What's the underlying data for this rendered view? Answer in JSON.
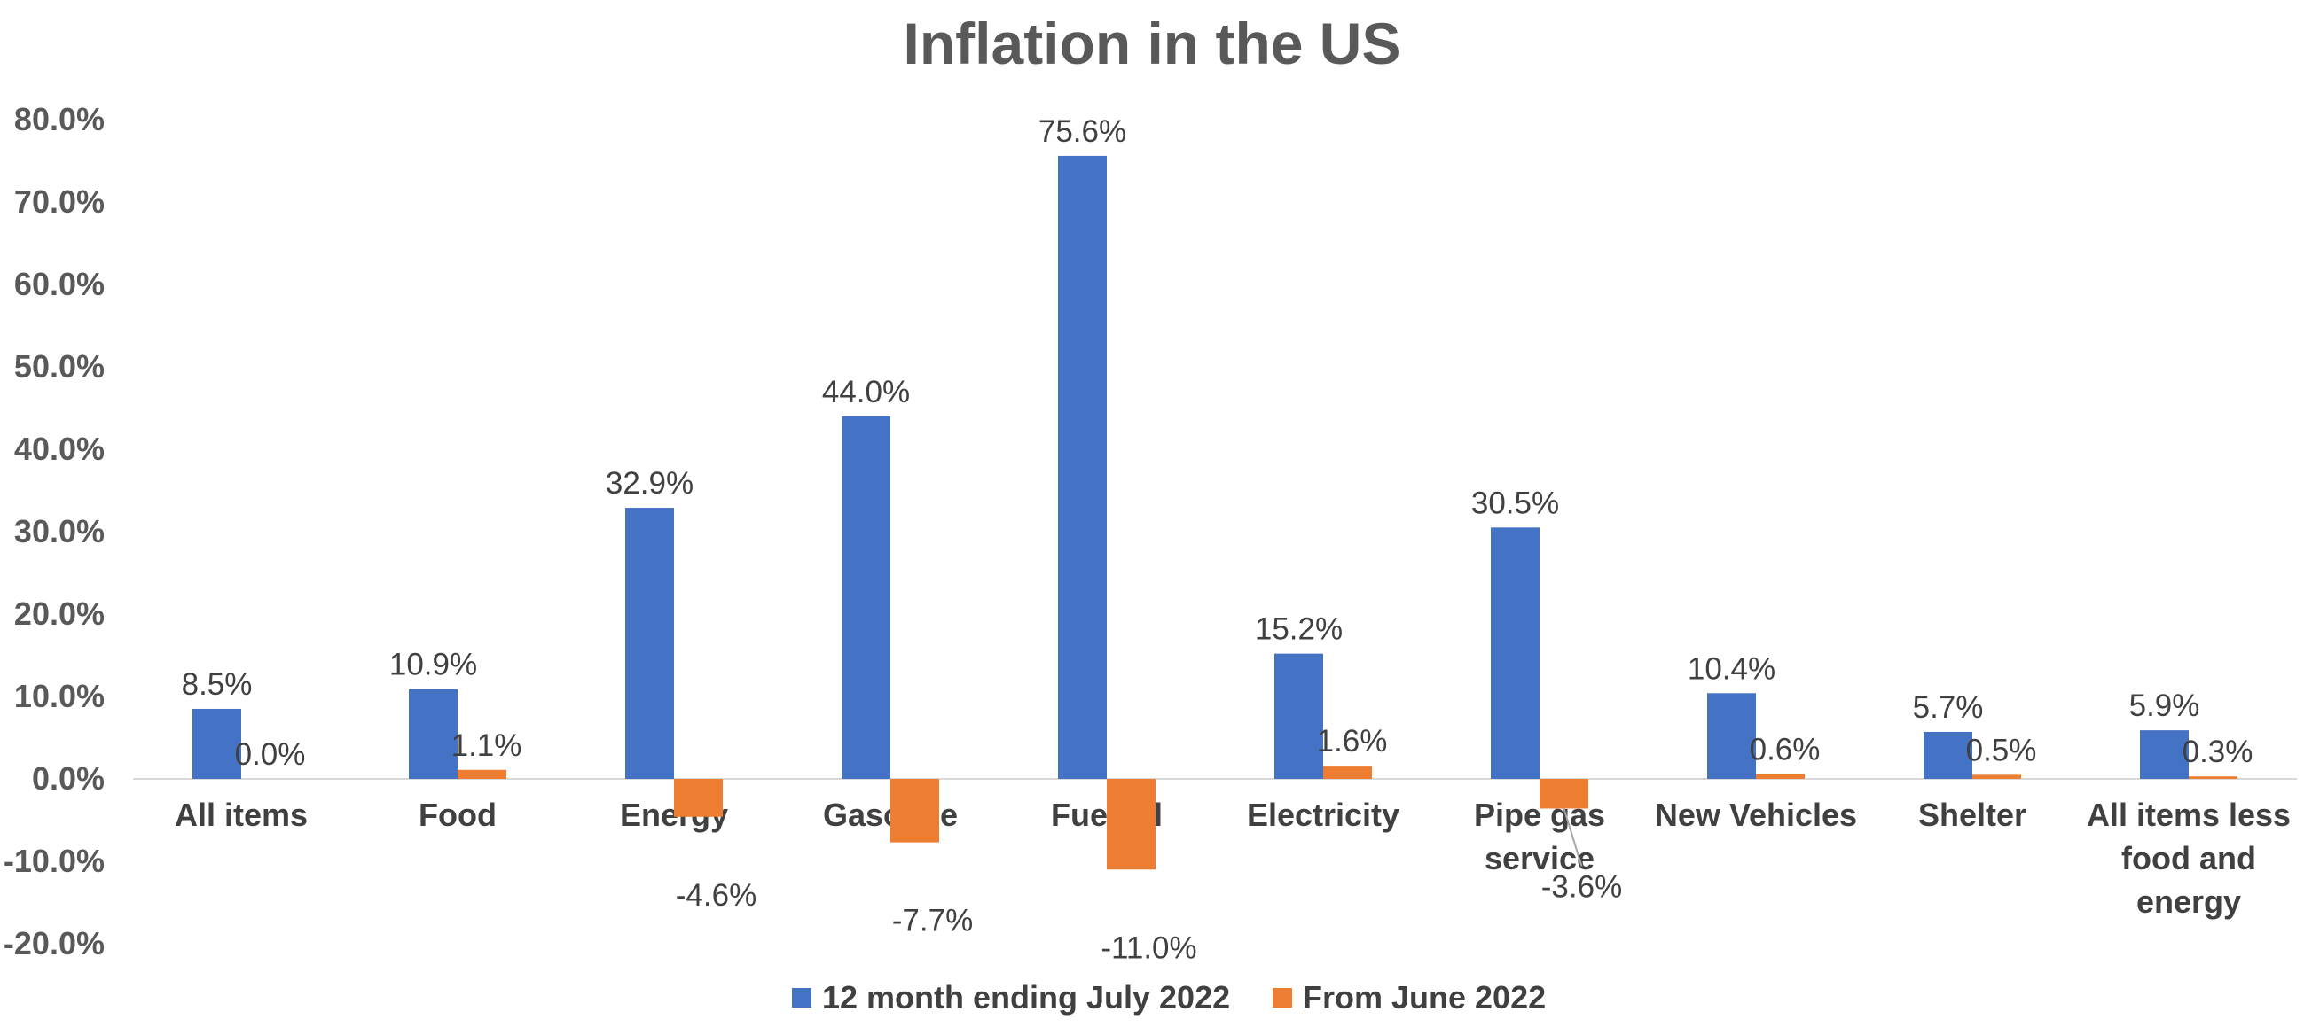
{
  "chart_data": {
    "type": "bar",
    "title": "Inflation in the US",
    "xlabel": "",
    "ylabel": "",
    "ylim": [
      -20,
      80
    ],
    "ytick_step": 10,
    "ytick_labels": [
      "-20.0%",
      "-10.0%",
      "0.0%",
      "10.0%",
      "20.0%",
      "30.0%",
      "40.0%",
      "50.0%",
      "60.0%",
      "70.0%",
      "80.0%"
    ],
    "grid": false,
    "legend_position": "bottom",
    "categories": [
      [
        "All items"
      ],
      [
        "Food"
      ],
      [
        "Energy"
      ],
      [
        "Gasoline"
      ],
      [
        "Fuel oil"
      ],
      [
        "Electricity"
      ],
      [
        "Pipe gas",
        "service"
      ],
      [
        "New Vehicles"
      ],
      [
        "Shelter"
      ],
      [
        "All items less",
        "food and",
        "energy"
      ]
    ],
    "series": [
      {
        "name": "12 month ending July 2022",
        "color": "#4472C4",
        "values": [
          8.5,
          10.9,
          32.9,
          44.0,
          75.6,
          15.2,
          30.5,
          10.4,
          5.7,
          5.9
        ],
        "labels": [
          "8.5%",
          "10.9%",
          "32.9%",
          "44.0%",
          "75.6%",
          "15.2%",
          "30.5%",
          "10.4%",
          "5.7%",
          "5.9%"
        ]
      },
      {
        "name": "From June 2022",
        "color": "#ED7D31",
        "values": [
          0.0,
          1.1,
          -4.6,
          -7.7,
          -11.0,
          1.6,
          -3.6,
          0.6,
          0.5,
          0.3
        ],
        "labels": [
          "0.0%",
          "1.1%",
          "-4.6%",
          "-7.7%",
          "-11.0%",
          "1.6%",
          "-3.6%",
          "0.6%",
          "0.5%",
          "0.3%"
        ]
      }
    ],
    "colors": {
      "title": "#595959",
      "axis": "#D9D9D9",
      "text": "#404040"
    }
  }
}
